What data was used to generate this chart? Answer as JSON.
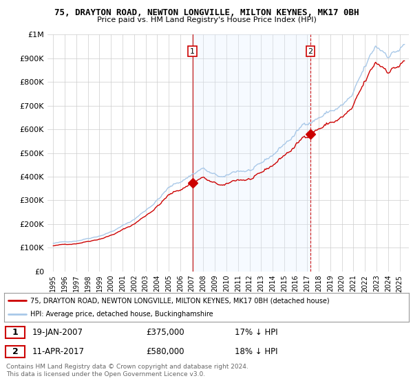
{
  "title": "75, DRAYTON ROAD, NEWTON LONGVILLE, MILTON KEYNES, MK17 0BH",
  "subtitle": "Price paid vs. HM Land Registry's House Price Index (HPI)",
  "legend_line1": "75, DRAYTON ROAD, NEWTON LONGVILLE, MILTON KEYNES, MK17 0BH (detached house)",
  "legend_line2": "HPI: Average price, detached house, Buckinghamshire",
  "footnote": "Contains HM Land Registry data © Crown copyright and database right 2024.\nThis data is licensed under the Open Government Licence v3.0.",
  "sale1_label": "1",
  "sale1_date": "19-JAN-2007",
  "sale1_price": "£375,000",
  "sale1_hpi": "17% ↓ HPI",
  "sale2_label": "2",
  "sale2_date": "11-APR-2017",
  "sale2_price": "£580,000",
  "sale2_hpi": "18% ↓ HPI",
  "ylim": [
    0,
    1000000
  ],
  "yticks": [
    0,
    100000,
    200000,
    300000,
    400000,
    500000,
    600000,
    700000,
    800000,
    900000,
    1000000
  ],
  "ytick_labels": [
    "£0",
    "£100K",
    "£200K",
    "£300K",
    "£400K",
    "£500K",
    "£600K",
    "£700K",
    "£800K",
    "£900K",
    "£1M"
  ],
  "hpi_color": "#a8c8e8",
  "sale_color": "#cc0000",
  "vline1_color": "#cc0000",
  "vline2_color": "#cc0000",
  "shade_color": "#dceeff",
  "grid_color": "#cccccc",
  "bg_color": "#ffffff",
  "sale1_x": 2007.05,
  "sale1_y": 375000,
  "sale2_x": 2017.28,
  "sale2_y": 580000,
  "xlim_left": 1994.5,
  "xlim_right": 2025.8
}
